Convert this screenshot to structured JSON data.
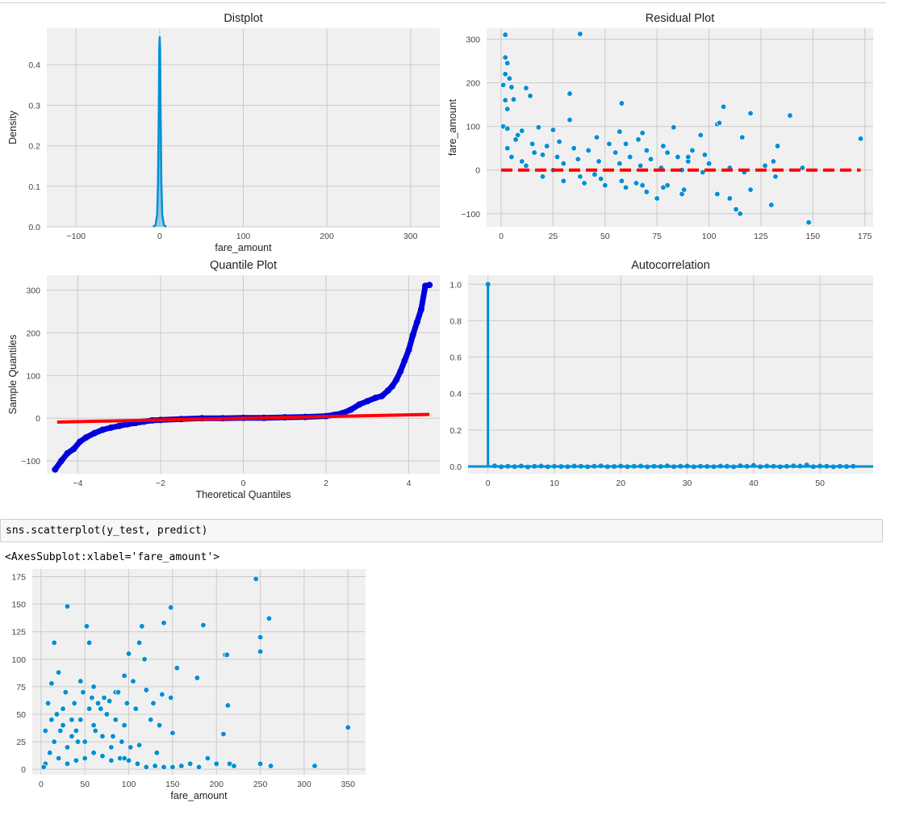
{
  "cell": {
    "code": "sns.scatterplot(y_test, predict)",
    "output": "<AxesSubplot:xlabel='fare_amount'>"
  },
  "chart_data": [
    {
      "id": "distplot",
      "type": "area",
      "title": "Distplot",
      "xlabel": "fare_amount",
      "ylabel": "Density",
      "xlim": [
        -135,
        335
      ],
      "ylim": [
        0,
        0.49
      ],
      "xticks": [
        -100,
        0,
        100,
        200,
        300
      ],
      "xtick_labels": [
        "−100",
        "0",
        "100",
        "200",
        "300"
      ],
      "yticks": [
        0.0,
        0.1,
        0.2,
        0.3,
        0.4
      ],
      "ytick_labels": [
        "0.0",
        "0.1",
        "0.2",
        "0.3",
        "0.4"
      ],
      "x": [
        -8,
        -5,
        -3,
        -2,
        -1,
        -0.5,
        0,
        0.5,
        1,
        2,
        3,
        5,
        8
      ],
      "y": [
        0,
        0.004,
        0.03,
        0.11,
        0.3,
        0.44,
        0.47,
        0.44,
        0.3,
        0.11,
        0.03,
        0.004,
        0
      ],
      "color": "#008fd5",
      "grid": true
    },
    {
      "id": "residual",
      "type": "scatter",
      "title": "Residual Plot",
      "xlabel": "",
      "ylabel": "fare_amount",
      "xlim": [
        -7,
        179
      ],
      "ylim": [
        -130,
        325
      ],
      "xticks": [
        0,
        25,
        50,
        75,
        100,
        125,
        150,
        175
      ],
      "xtick_labels": [
        "0",
        "25",
        "50",
        "75",
        "100",
        "125",
        "150",
        "175"
      ],
      "yticks": [
        -100,
        0,
        100,
        200,
        300
      ],
      "ytick_labels": [
        "−100",
        "0",
        "100",
        "200",
        "300"
      ],
      "points": [
        [
          2,
          310
        ],
        [
          38,
          312
        ],
        [
          2,
          258
        ],
        [
          3,
          245
        ],
        [
          2,
          220
        ],
        [
          4,
          210
        ],
        [
          1,
          195
        ],
        [
          5,
          190
        ],
        [
          12,
          188
        ],
        [
          14,
          170
        ],
        [
          2,
          160
        ],
        [
          6,
          162
        ],
        [
          33,
          175
        ],
        [
          58,
          153
        ],
        [
          3,
          140
        ],
        [
          107,
          145
        ],
        [
          120,
          130
        ],
        [
          139,
          125
        ],
        [
          33,
          115
        ],
        [
          104,
          105
        ],
        [
          105,
          108
        ],
        [
          1,
          100
        ],
        [
          3,
          95
        ],
        [
          10,
          90
        ],
        [
          18,
          98
        ],
        [
          25,
          92
        ],
        [
          46,
          75
        ],
        [
          57,
          88
        ],
        [
          68,
          85
        ],
        [
          83,
          98
        ],
        [
          96,
          80
        ],
        [
          116,
          75
        ],
        [
          133,
          55
        ],
        [
          131,
          20
        ],
        [
          132,
          -15
        ],
        [
          130,
          -80
        ],
        [
          110,
          -65
        ],
        [
          115,
          -100
        ],
        [
          120,
          -45
        ],
        [
          148,
          -120
        ],
        [
          104,
          -55
        ],
        [
          113,
          -90
        ],
        [
          87,
          -55
        ],
        [
          70,
          -50
        ],
        [
          75,
          -65
        ],
        [
          80,
          -35
        ],
        [
          60,
          -40
        ],
        [
          65,
          -30
        ],
        [
          50,
          -35
        ],
        [
          40,
          -30
        ],
        [
          30,
          -25
        ],
        [
          20,
          -15
        ],
        [
          45,
          -10
        ],
        [
          10,
          20
        ],
        [
          15,
          60
        ],
        [
          22,
          55
        ],
        [
          35,
          50
        ],
        [
          55,
          40
        ],
        [
          62,
          30
        ],
        [
          72,
          25
        ],
        [
          85,
          30
        ],
        [
          90,
          20
        ],
        [
          100,
          15
        ],
        [
          110,
          5
        ],
        [
          117,
          -5
        ],
        [
          127,
          10
        ],
        [
          145,
          5
        ],
        [
          173,
          72
        ],
        [
          8,
          80
        ],
        [
          28,
          65
        ],
        [
          42,
          45
        ],
        [
          52,
          60
        ],
        [
          66,
          70
        ],
        [
          78,
          55
        ],
        [
          92,
          45
        ],
        [
          98,
          35
        ],
        [
          5,
          30
        ],
        [
          12,
          10
        ],
        [
          25,
          0
        ],
        [
          38,
          -15
        ],
        [
          48,
          -20
        ],
        [
          58,
          -25
        ],
        [
          68,
          -35
        ],
        [
          78,
          -40
        ],
        [
          88,
          -45
        ],
        [
          3,
          50
        ],
        [
          7,
          70
        ],
        [
          16,
          40
        ],
        [
          27,
          30
        ],
        [
          37,
          25
        ],
        [
          47,
          20
        ],
        [
          57,
          15
        ],
        [
          67,
          10
        ],
        [
          77,
          5
        ],
        [
          87,
          0
        ],
        [
          97,
          -5
        ],
        [
          60,
          60
        ],
        [
          70,
          45
        ],
        [
          80,
          40
        ],
        [
          90,
          30
        ],
        [
          20,
          35
        ],
        [
          30,
          15
        ]
      ],
      "trend": {
        "x": [
          0,
          173
        ],
        "y": [
          0,
          0
        ],
        "color": "#ff0000",
        "style": "dashed"
      },
      "color": "#008fd5",
      "grid": true
    },
    {
      "id": "quantile",
      "type": "scatter",
      "title": "Quantile Plot",
      "xlabel": "Theoretical Quantiles",
      "ylabel": "Sample Quantiles",
      "xlim": [
        -4.75,
        4.75
      ],
      "ylim": [
        -130,
        335
      ],
      "xticks": [
        -4,
        -2,
        0,
        2,
        4
      ],
      "xtick_labels": [
        "−4",
        "−2",
        "0",
        "2",
        "4"
      ],
      "yticks": [
        -100,
        0,
        100,
        200,
        300
      ],
      "ytick_labels": [
        "−100",
        "0",
        "100",
        "200",
        "300"
      ],
      "curve_x": [
        -4.55,
        -4.4,
        -4.25,
        -4.1,
        -3.95,
        -3.8,
        -3.6,
        -3.4,
        -3.2,
        -3.0,
        -2.8,
        -2.6,
        -2.4,
        -2.2,
        -2.0,
        -1.5,
        -1.0,
        -0.5,
        0,
        0.5,
        1.0,
        1.5,
        2.0,
        2.2,
        2.4,
        2.6,
        2.8,
        3.0,
        3.2,
        3.35,
        3.5,
        3.6,
        3.7,
        3.8,
        3.9,
        4.0,
        4.1,
        4.2,
        4.3,
        4.4,
        4.5
      ],
      "curve_y": [
        -120,
        -100,
        -82,
        -72,
        -55,
        -45,
        -35,
        -27,
        -22,
        -18,
        -14,
        -11,
        -8,
        -5,
        -4,
        -2,
        0,
        0,
        1,
        1,
        2,
        3,
        5,
        8,
        12,
        20,
        32,
        40,
        48,
        52,
        65,
        75,
        90,
        110,
        135,
        160,
        195,
        225,
        255,
        310,
        312
      ],
      "line": {
        "x": [
          -4.5,
          4.5
        ],
        "y": [
          -9,
          9
        ],
        "color": "#ff0000"
      },
      "color": "#0000dd",
      "grid": true
    },
    {
      "id": "autocorr",
      "type": "line",
      "title": "Autocorrelation",
      "xlabel": "",
      "ylabel": "",
      "xlim": [
        -3,
        58
      ],
      "ylim": [
        -0.04,
        1.05
      ],
      "xticks": [
        0,
        10,
        20,
        30,
        40,
        50
      ],
      "xtick_labels": [
        "0",
        "10",
        "20",
        "30",
        "40",
        "50"
      ],
      "yticks": [
        0.0,
        0.2,
        0.4,
        0.6,
        0.8,
        1.0
      ],
      "ytick_labels": [
        "0.0",
        "0.2",
        "0.4",
        "0.6",
        "0.8",
        "1.0"
      ],
      "x": [
        0,
        1,
        2,
        3,
        4,
        5,
        6,
        7,
        8,
        9,
        10,
        11,
        12,
        13,
        14,
        15,
        16,
        17,
        18,
        19,
        20,
        21,
        22,
        23,
        24,
        25,
        26,
        27,
        28,
        29,
        30,
        31,
        32,
        33,
        34,
        35,
        36,
        37,
        38,
        39,
        40,
        41,
        42,
        43,
        44,
        45,
        46,
        47,
        48,
        49,
        50,
        51,
        52,
        53,
        54,
        55
      ],
      "y": [
        1.0,
        0.003,
        -0.002,
        0.001,
        -0.001,
        0.002,
        -0.003,
        0.001,
        0.002,
        -0.002,
        0.001,
        0.0,
        -0.001,
        0.002,
        0.001,
        -0.002,
        0.001,
        0.003,
        -0.001,
        0.0,
        0.002,
        -0.001,
        0.001,
        0.002,
        -0.002,
        0.001,
        0.0,
        0.003,
        -0.001,
        0.001,
        0.002,
        -0.002,
        0.001,
        0.0,
        -0.001,
        0.002,
        0.001,
        -0.002,
        0.004,
        0.001,
        0.006,
        -0.001,
        0.002,
        0.001,
        -0.002,
        0.001,
        0.003,
        0.002,
        0.008,
        -0.001,
        0.002,
        0.001,
        -0.002,
        0.001,
        0.0,
        0.001
      ],
      "color": "#008fd5",
      "grid": true
    },
    {
      "id": "scatter2",
      "type": "scatter",
      "title": "",
      "xlabel": "fare_amount",
      "ylabel": "",
      "xlim": [
        -10,
        370
      ],
      "ylim": [
        -5,
        182
      ],
      "xticks": [
        0,
        50,
        100,
        150,
        200,
        250,
        300,
        350
      ],
      "xtick_labels": [
        "0",
        "50",
        "100",
        "150",
        "200",
        "250",
        "300",
        "350"
      ],
      "yticks": [
        0,
        25,
        50,
        75,
        100,
        125,
        150,
        175
      ],
      "ytick_labels": [
        "0",
        "25",
        "50",
        "75",
        "100",
        "125",
        "150",
        "175"
      ],
      "points": [
        [
          245,
          173
        ],
        [
          30,
          148
        ],
        [
          148,
          147
        ],
        [
          260,
          137
        ],
        [
          52,
          130
        ],
        [
          115,
          130
        ],
        [
          140,
          133
        ],
        [
          185,
          131
        ],
        [
          250,
          120
        ],
        [
          15,
          115
        ],
        [
          55,
          115
        ],
        [
          112,
          115
        ],
        [
          100,
          105
        ],
        [
          118,
          100
        ],
        [
          210,
          104
        ],
        [
          212,
          104
        ],
        [
          250,
          107
        ],
        [
          12,
          78
        ],
        [
          20,
          88
        ],
        [
          28,
          70
        ],
        [
          45,
          80
        ],
        [
          60,
          75
        ],
        [
          72,
          65
        ],
        [
          85,
          70
        ],
        [
          95,
          85
        ],
        [
          105,
          80
        ],
        [
          120,
          72
        ],
        [
          128,
          60
        ],
        [
          138,
          68
        ],
        [
          148,
          65
        ],
        [
          155,
          92
        ],
        [
          178,
          83
        ],
        [
          213,
          58
        ],
        [
          150,
          33
        ],
        [
          208,
          32
        ],
        [
          350,
          38
        ],
        [
          5,
          5
        ],
        [
          15,
          25
        ],
        [
          25,
          40
        ],
        [
          35,
          30
        ],
        [
          45,
          45
        ],
        [
          55,
          55
        ],
        [
          65,
          60
        ],
        [
          75,
          50
        ],
        [
          85,
          45
        ],
        [
          95,
          40
        ],
        [
          10,
          15
        ],
        [
          20,
          10
        ],
        [
          30,
          20
        ],
        [
          40,
          35
        ],
        [
          50,
          25
        ],
        [
          60,
          40
        ],
        [
          70,
          30
        ],
        [
          80,
          20
        ],
        [
          90,
          10
        ],
        [
          100,
          8
        ],
        [
          110,
          5
        ],
        [
          120,
          2
        ],
        [
          130,
          3
        ],
        [
          140,
          2
        ],
        [
          150,
          2
        ],
        [
          160,
          3
        ],
        [
          170,
          5
        ],
        [
          180,
          2
        ],
        [
          190,
          10
        ],
        [
          200,
          5
        ],
        [
          215,
          5
        ],
        [
          220,
          3
        ],
        [
          250,
          5
        ],
        [
          262,
          3
        ],
        [
          312,
          3
        ],
        [
          3,
          2
        ],
        [
          8,
          60
        ],
        [
          18,
          50
        ],
        [
          38,
          60
        ],
        [
          48,
          70
        ],
        [
          58,
          65
        ],
        [
          68,
          55
        ],
        [
          78,
          62
        ],
        [
          88,
          70
        ],
        [
          98,
          60
        ],
        [
          108,
          55
        ],
        [
          125,
          45
        ],
        [
          135,
          40
        ],
        [
          102,
          20
        ],
        [
          95,
          10
        ],
        [
          80,
          8
        ],
        [
          70,
          12
        ],
        [
          60,
          15
        ],
        [
          50,
          10
        ],
        [
          40,
          8
        ],
        [
          30,
          5
        ],
        [
          25,
          55
        ],
        [
          35,
          45
        ],
        [
          5,
          35
        ],
        [
          12,
          45
        ],
        [
          22,
          35
        ],
        [
          42,
          25
        ],
        [
          62,
          35
        ],
        [
          82,
          30
        ],
        [
          92,
          25
        ],
        [
          112,
          22
        ],
        [
          132,
          15
        ]
      ],
      "color": "#008fd5",
      "grid": true
    }
  ]
}
